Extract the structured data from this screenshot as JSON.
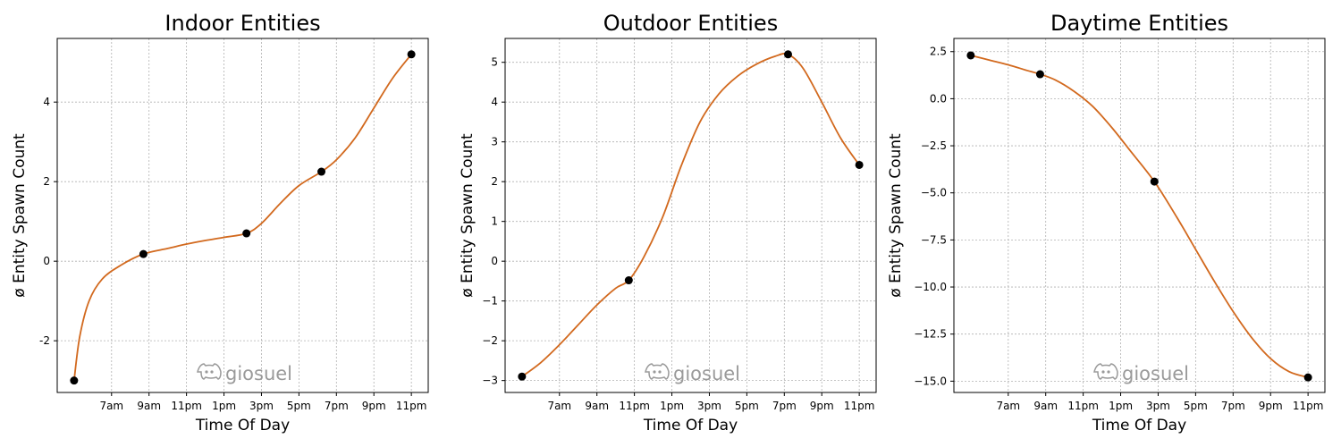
{
  "watermark": {
    "icon": "discord-icon",
    "label": "giosuel",
    "color": "#9a9a9a"
  },
  "colors": {
    "curve": "#d2691e",
    "point": "#000000",
    "grid": "#b0b0b0"
  },
  "chart_data": [
    {
      "type": "line",
      "title": "Indoor Entities",
      "xlabel": "Time Of Day",
      "ylabel": "ø Entity Spawn Count",
      "x_ticks": [
        "7am",
        "9am",
        "11pm",
        "1pm",
        "3pm",
        "5pm",
        "7pm",
        "9pm",
        "11pm"
      ],
      "xlim": [
        4.1,
        23.9
      ],
      "ylim": [
        -3.3,
        5.6
      ],
      "y_ticks": [
        -2,
        0,
        2,
        4
      ],
      "y_tick_labels": [
        "-2",
        "0",
        "2",
        "4"
      ],
      "grid": true,
      "points": [
        {
          "x": 5.0,
          "y": -3.0
        },
        {
          "x": 8.7,
          "y": 0.18
        },
        {
          "x": 14.2,
          "y": 0.7
        },
        {
          "x": 18.2,
          "y": 2.25
        },
        {
          "x": 23.0,
          "y": 5.2
        }
      ],
      "curve": [
        {
          "x": 5.0,
          "y": -3.0
        },
        {
          "x": 5.3,
          "y": -1.9
        },
        {
          "x": 5.8,
          "y": -1.0
        },
        {
          "x": 6.5,
          "y": -0.45
        },
        {
          "x": 7.5,
          "y": -0.1
        },
        {
          "x": 8.7,
          "y": 0.18
        },
        {
          "x": 10.0,
          "y": 0.32
        },
        {
          "x": 11.0,
          "y": 0.43
        },
        {
          "x": 12.0,
          "y": 0.52
        },
        {
          "x": 13.0,
          "y": 0.6
        },
        {
          "x": 14.2,
          "y": 0.7
        },
        {
          "x": 15.0,
          "y": 0.95
        },
        {
          "x": 16.0,
          "y": 1.45
        },
        {
          "x": 17.0,
          "y": 1.9
        },
        {
          "x": 18.2,
          "y": 2.25
        },
        {
          "x": 19.0,
          "y": 2.55
        },
        {
          "x": 20.0,
          "y": 3.1
        },
        {
          "x": 21.0,
          "y": 3.85
        },
        {
          "x": 22.0,
          "y": 4.6
        },
        {
          "x": 23.0,
          "y": 5.2
        }
      ]
    },
    {
      "type": "line",
      "title": "Outdoor Entities",
      "xlabel": "Time Of Day",
      "ylabel": "ø Entity Spawn Count",
      "x_ticks": [
        "7am",
        "9am",
        "11pm",
        "1pm",
        "3pm",
        "5pm",
        "7pm",
        "9pm",
        "11pm"
      ],
      "xlim": [
        4.1,
        23.9
      ],
      "ylim": [
        -3.3,
        5.6
      ],
      "y_ticks": [
        -3,
        -2,
        -1,
        0,
        1,
        2,
        3,
        4,
        5
      ],
      "y_tick_labels": [
        "−3",
        "−2",
        "−1",
        "0",
        "1",
        "2",
        "3",
        "4",
        "5"
      ],
      "grid": true,
      "points": [
        {
          "x": 5.0,
          "y": -2.9
        },
        {
          "x": 10.7,
          "y": -0.48
        },
        {
          "x": 19.2,
          "y": 5.2
        },
        {
          "x": 23.0,
          "y": 2.42
        }
      ],
      "curve": [
        {
          "x": 5.0,
          "y": -2.9
        },
        {
          "x": 6.0,
          "y": -2.55
        },
        {
          "x": 7.0,
          "y": -2.1
        },
        {
          "x": 8.0,
          "y": -1.6
        },
        {
          "x": 9.0,
          "y": -1.1
        },
        {
          "x": 10.0,
          "y": -0.68
        },
        {
          "x": 10.7,
          "y": -0.48
        },
        {
          "x": 11.5,
          "y": 0.1
        },
        {
          "x": 12.5,
          "y": 1.1
        },
        {
          "x": 13.5,
          "y": 2.4
        },
        {
          "x": 14.5,
          "y": 3.5
        },
        {
          "x": 15.5,
          "y": 4.2
        },
        {
          "x": 16.5,
          "y": 4.65
        },
        {
          "x": 17.5,
          "y": 4.95
        },
        {
          "x": 18.5,
          "y": 5.15
        },
        {
          "x": 19.2,
          "y": 5.2
        },
        {
          "x": 20.0,
          "y": 4.85
        },
        {
          "x": 21.0,
          "y": 4.0
        },
        {
          "x": 22.0,
          "y": 3.1
        },
        {
          "x": 23.0,
          "y": 2.42
        }
      ]
    },
    {
      "type": "line",
      "title": "Daytime Entities",
      "xlabel": "Time Of Day",
      "ylabel": "ø Entity Spawn Count",
      "x_ticks": [
        "7am",
        "9am",
        "11pm",
        "1pm",
        "3pm",
        "5pm",
        "7pm",
        "9pm",
        "11pm"
      ],
      "xlim": [
        4.1,
        23.9
      ],
      "ylim": [
        -15.6,
        3.2
      ],
      "y_ticks": [
        2.5,
        0.0,
        -2.5,
        -5.0,
        -7.5,
        -10.0,
        -12.5,
        -15.0
      ],
      "y_tick_labels": [
        "2.5",
        "0.0",
        "−2.5",
        "−5.0",
        "−7.5",
        "−10.0",
        "−12.5",
        "−15.0"
      ],
      "grid": true,
      "points": [
        {
          "x": 5.0,
          "y": 2.3
        },
        {
          "x": 8.7,
          "y": 1.3
        },
        {
          "x": 14.8,
          "y": -4.4
        },
        {
          "x": 23.0,
          "y": -14.8
        }
      ],
      "curve": [
        {
          "x": 5.0,
          "y": 2.3
        },
        {
          "x": 6.0,
          "y": 2.05
        },
        {
          "x": 7.0,
          "y": 1.8
        },
        {
          "x": 8.0,
          "y": 1.5
        },
        {
          "x": 8.7,
          "y": 1.3
        },
        {
          "x": 9.5,
          "y": 1.0
        },
        {
          "x": 10.5,
          "y": 0.4
        },
        {
          "x": 11.5,
          "y": -0.4
        },
        {
          "x": 12.5,
          "y": -1.5
        },
        {
          "x": 13.5,
          "y": -2.75
        },
        {
          "x": 14.8,
          "y": -4.4
        },
        {
          "x": 16.0,
          "y": -6.3
        },
        {
          "x": 17.0,
          "y": -8.0
        },
        {
          "x": 18.0,
          "y": -9.7
        },
        {
          "x": 19.0,
          "y": -11.3
        },
        {
          "x": 20.0,
          "y": -12.7
        },
        {
          "x": 21.0,
          "y": -13.8
        },
        {
          "x": 22.0,
          "y": -14.5
        },
        {
          "x": 23.0,
          "y": -14.8
        }
      ]
    }
  ]
}
